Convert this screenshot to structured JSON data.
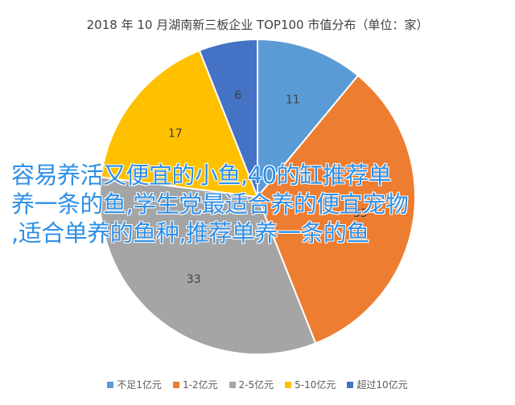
{
  "chart_data": {
    "type": "pie",
    "title": "2018 年 10 月湖南新三板企业 TOP100 市值分布（单位：家）",
    "categories": [
      "不足1亿元",
      "1-2亿元",
      "2-5亿元",
      "5-10亿元",
      "超过10亿元"
    ],
    "values": [
      11,
      33,
      33,
      17,
      6
    ],
    "colors": [
      "#5b9bd5",
      "#ed7d31",
      "#a5a5a5",
      "#ffc000",
      "#4472c4"
    ],
    "legend_position": "bottom"
  },
  "overlay_text": {
    "line1": "容易养活又便宜的小鱼,40的缸推荐单",
    "line2": "养一条的鱼,学生党最适合养的便宜宠物",
    "line3": ",适合单养的鱼种,推荐单养一条的鱼"
  }
}
